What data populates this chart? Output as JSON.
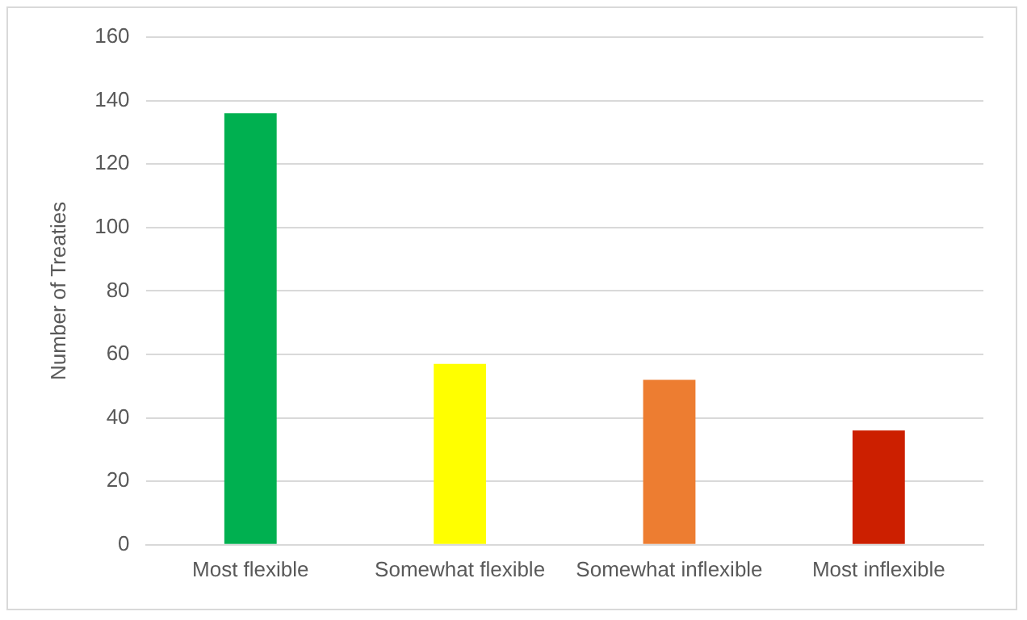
{
  "chart_data": {
    "type": "bar",
    "ylabel": "Number of Treaties",
    "categories": [
      "Most flexible",
      "Somewhat flexible",
      "Somewhat inflexible",
      "Most inflexible"
    ],
    "values": [
      136,
      57,
      52,
      36
    ],
    "colors": [
      "#00b050",
      "#ffff00",
      "#ed7d31",
      "#cc1f00"
    ],
    "ylim": [
      0,
      160
    ],
    "yticks": [
      0,
      20,
      40,
      60,
      80,
      100,
      120,
      140,
      160
    ],
    "grid": "y"
  }
}
